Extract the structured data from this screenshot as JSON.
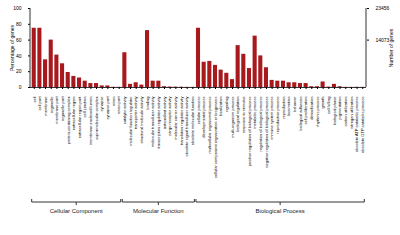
{
  "chart_data": {
    "type": "bar",
    "y_label": "Percentage of genes",
    "y2_label": "Number of genes",
    "color": "#a8191e",
    "categories": [
      "cell",
      "cell part",
      "membrane",
      "organelle",
      "membrane part",
      "organelle part",
      "protein-containing complex",
      "extracellular region",
      "extracellular region part",
      "cell junction",
      "membrane-enclosed lumen",
      "supramolecular complex",
      "synapse",
      "synapse part",
      "virion",
      "virion part",
      "catalytic activity",
      "molecular function regulator",
      "transporter activity",
      "structural molecule activity",
      "binding",
      "molecular transducer activity",
      "transcription regulator activity",
      "antioxidant activity",
      "cargo receptor activity",
      "molecular carrier activity",
      "translation regulator activity",
      "obsolete signal transducer activity",
      "obsolete molecular function",
      "cellular process",
      "developmental process",
      "multicellular organismal process",
      "cellular component organization or biogenesis",
      "localization",
      "signaling",
      "multi-organism process",
      "biological regulation",
      "response to stimulus",
      "positive regulation of biological process",
      "metabolic process",
      "regulation of biological process",
      "negative regulation of biological process",
      "immune system process",
      "reproductive process",
      "reproduction",
      "locomotion",
      "behavior",
      "biological adhesion",
      "cell proliferation",
      "detoxification",
      "rhythmic process",
      "growth",
      "cell killing",
      "biological phase",
      "pigmentation",
      "carbon utilization",
      "nitrogen utilization",
      "obsolete ATP catabolic process",
      "obsolete GTP catabolic process"
    ],
    "values": [
      75,
      75,
      35,
      60,
      41,
      30,
      19,
      14,
      12,
      8,
      5,
      5,
      2,
      2,
      0.3,
      0.3,
      44,
      4,
      6,
      3,
      72,
      8,
      8,
      1,
      0.6,
      0.5,
      0.4,
      0.2,
      0.2,
      75,
      32,
      33,
      28,
      22,
      18,
      10,
      53,
      42,
      24,
      65,
      40,
      25,
      9,
      8,
      8,
      6,
      6,
      5,
      5,
      1,
      1,
      7,
      0.5,
      4,
      1,
      0.2,
      0.2,
      0.3,
      0.2
    ],
    "groups": [
      {
        "name": "Cellular Component",
        "count": 16
      },
      {
        "name": "Molecular Function",
        "count": 13
      },
      {
        "name": "Biological Process",
        "count": 30
      }
    ],
    "ylim": [
      0,
      100
    ],
    "yticks": [
      0,
      20,
      40,
      60,
      80,
      100
    ],
    "y2lim": [
      0,
      23456
    ],
    "y2ticks": [
      14073,
      23456
    ]
  }
}
